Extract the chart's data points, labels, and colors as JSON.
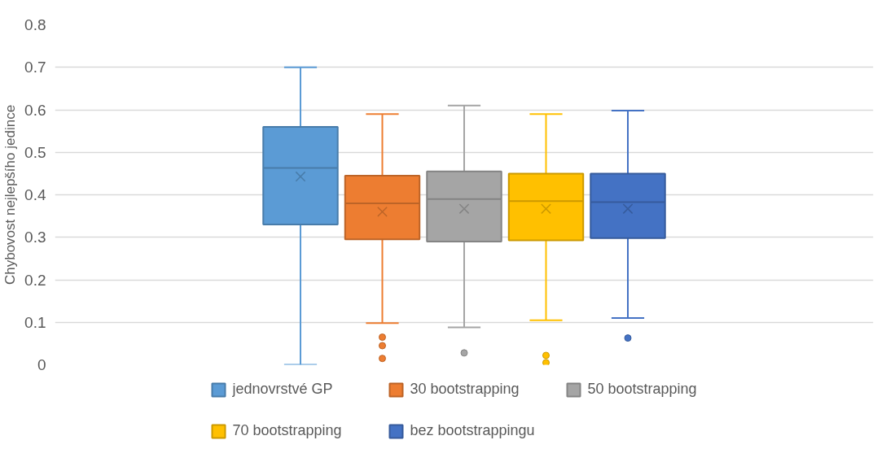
{
  "chart_data": {
    "type": "box",
    "ylabel": "Chybovost nejlepšího jedince",
    "categories": [
      null
    ],
    "ylim": [
      0,
      0.8
    ],
    "yticks": [
      0,
      0.1,
      0.2,
      0.3,
      0.4,
      0.5,
      0.6,
      0.7,
      0.8
    ],
    "grid": "y",
    "legend": "bottom",
    "tick_labels": "y",
    "series": [
      {
        "name": "jednovrstvé GP",
        "color": "#5b9bd5",
        "boxes": [
          {
            "low": 0,
            "q1": 0.33,
            "median": 0.463,
            "q3": 0.56,
            "high": 0.7,
            "mean": 0.443
          }
        ]
      },
      {
        "name": "30 bootstrapping",
        "color": "#ed7d31",
        "boxes": [
          {
            "low": 0.098,
            "q1": 0.295,
            "median": 0.38,
            "q3": 0.445,
            "high": 0.59,
            "mean": 0.36,
            "outliers": [
              0.065,
              0.045,
              0.015
            ]
          }
        ]
      },
      {
        "name": "50 bootstrapping",
        "color": "#a5a5a5",
        "boxes": [
          {
            "low": 0.088,
            "q1": 0.29,
            "median": 0.39,
            "q3": 0.455,
            "high": 0.61,
            "mean": 0.367,
            "outliers": [
              0.028
            ]
          }
        ]
      },
      {
        "name": "70 bootstrapping",
        "color": "#ffc000",
        "boxes": [
          {
            "low": 0.105,
            "q1": 0.293,
            "median": 0.385,
            "q3": 0.45,
            "high": 0.59,
            "mean": 0.367,
            "outliers": [
              0.022,
              0.005
            ]
          }
        ]
      },
      {
        "name": "bez bootstrappingu",
        "color": "#4472c4",
        "boxes": [
          {
            "low": 0.11,
            "q1": 0.298,
            "median": 0.383,
            "q3": 0.45,
            "high": 0.598,
            "mean": 0.367,
            "outliers": [
              0.063
            ]
          }
        ]
      }
    ]
  }
}
